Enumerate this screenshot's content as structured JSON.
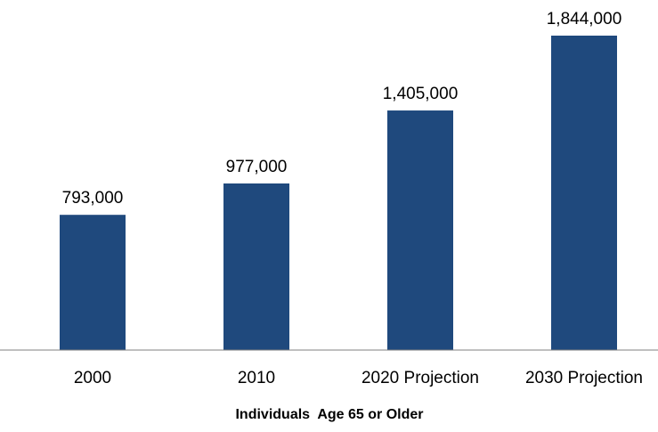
{
  "chart_data": {
    "type": "bar",
    "categories": [
      "2000",
      "2010",
      "2020 Projection",
      "2030 Projection"
    ],
    "values": [
      793000,
      977000,
      1405000,
      1844000
    ],
    "value_labels": [
      "793,000",
      "977,000",
      "1,405,000",
      "1,844,000"
    ],
    "title": "",
    "xlabel": "Individuals  Age 65 or Older",
    "ylabel": "",
    "ylim": [
      0,
      2000000
    ],
    "grid": false,
    "legend": "none",
    "bar_color": "#1f497d",
    "axis_color": "#808080"
  }
}
